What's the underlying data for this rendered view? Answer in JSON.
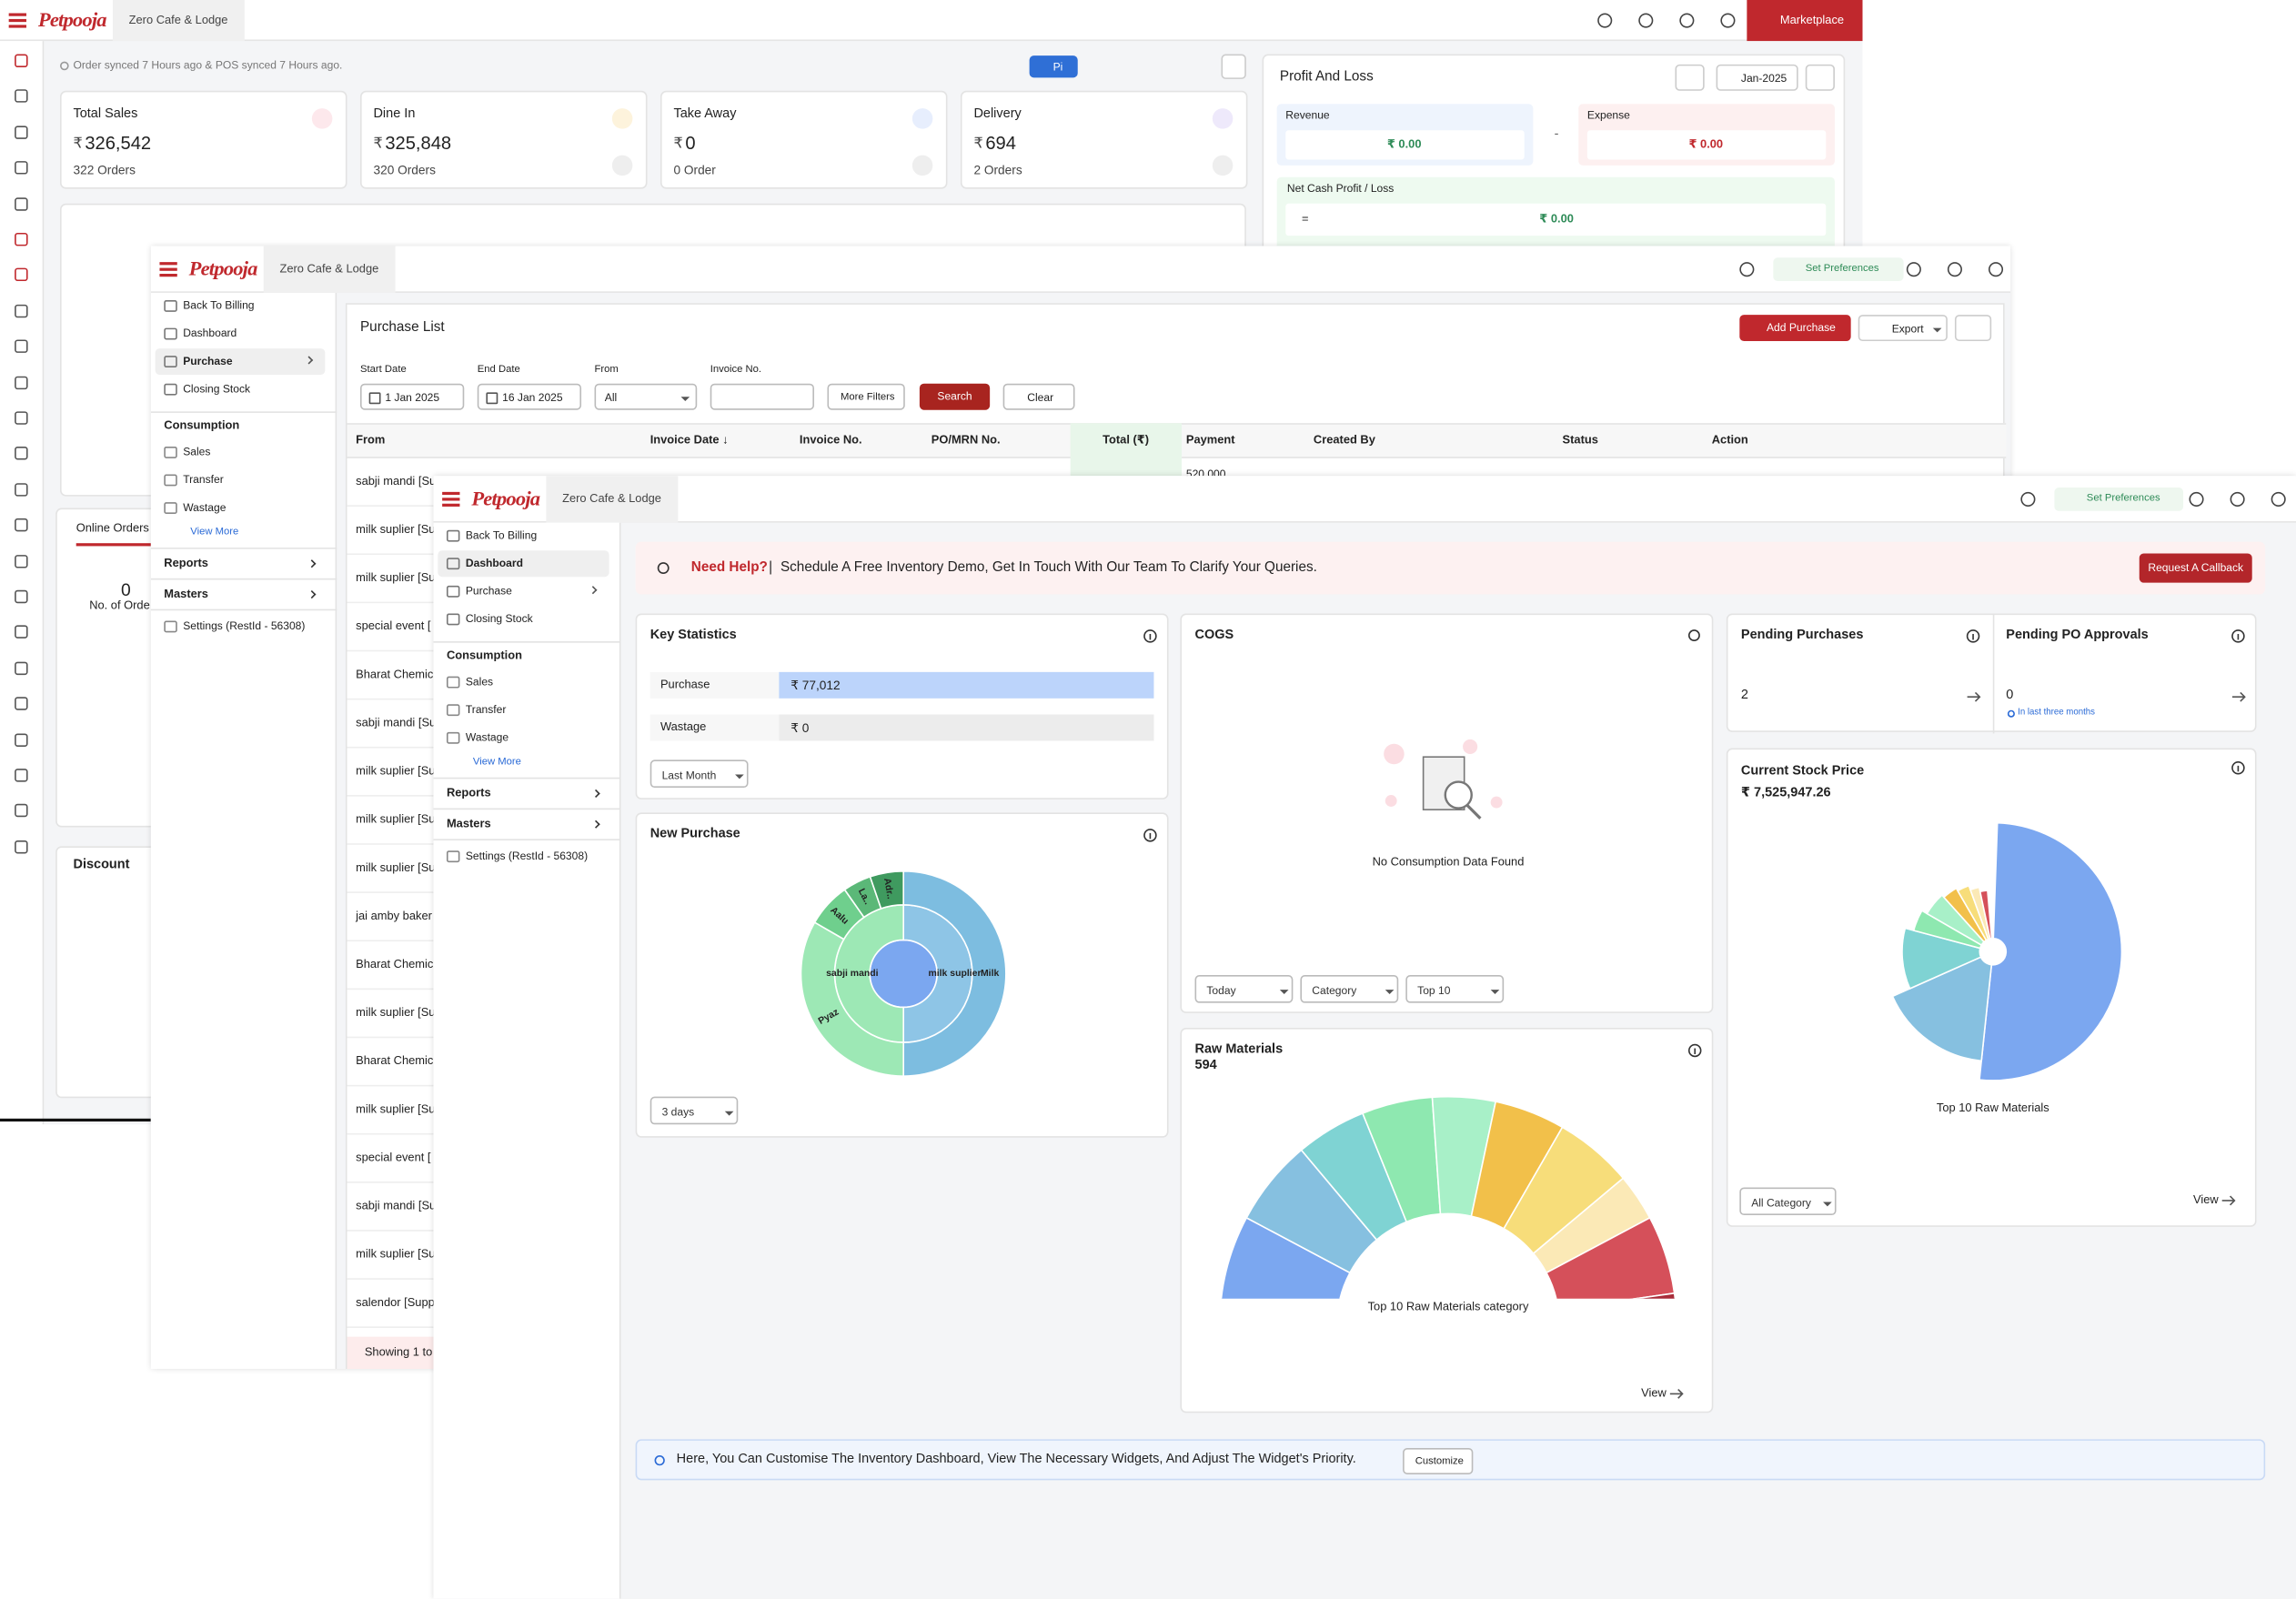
{
  "background_window": {
    "brand": "Petpooja",
    "outlet": "Zero Cafe & Lodge",
    "marketplace": "Marketplace",
    "sync_status": "Order synced 7 Hours ago & POS synced 7 Hours ago.",
    "pi_button": "Pi",
    "cards": [
      {
        "title": "Total Sales",
        "currency": "₹",
        "amount": "326,542",
        "orders": "322 Orders"
      },
      {
        "title": "Dine In",
        "currency": "₹",
        "amount": "325,848",
        "orders": "320 Orders"
      },
      {
        "title": "Take Away",
        "currency": "₹",
        "amount": "0",
        "orders": "0 Order"
      },
      {
        "title": "Delivery",
        "currency": "₹",
        "amount": "694",
        "orders": "2 Orders"
      }
    ],
    "profit_and_loss": {
      "title": "Profit And Loss",
      "period": "Jan-2025",
      "revenue_label": "Revenue",
      "revenue": "₹ 0.00",
      "operator": "-",
      "expense_label": "Expense",
      "expense": "₹ 0.00",
      "net_label": "Net Cash Profit / Loss",
      "equals": "=",
      "net": "₹ 0.00"
    },
    "online_orders": {
      "tab": "Online Orders",
      "count": "0",
      "label": "No. of Orde"
    },
    "discount": "Discount"
  },
  "purchase_window": {
    "brand": "Petpooja",
    "outlet": "Zero Cafe & Lodge",
    "set_preferences": "Set Preferences",
    "sidebar": {
      "menu": [
        "Back To Billing",
        "Dashboard",
        "Purchase",
        "Closing Stock"
      ],
      "section": "Consumption",
      "section_menu": [
        "Sales",
        "Transfer",
        "Wastage"
      ],
      "view_more": "View More",
      "groups": [
        "Reports",
        "Masters"
      ],
      "settings": "Settings (RestId - 56308)"
    },
    "title": "Purchase List",
    "add_purchase": "Add Purchase",
    "export": "Export",
    "filters": {
      "start_date_label": "Start Date",
      "start_date": "1 Jan 2025",
      "end_date_label": "End Date",
      "end_date": "16 Jan 2025",
      "from_label": "From",
      "from": "All",
      "invoice_label": "Invoice No.",
      "more_filters": "More Filters",
      "search": "Search",
      "clear": "Clear"
    },
    "columns": [
      "From",
      "Invoice Date ↓",
      "Invoice No.",
      "PO/MRN No.",
      "Total (₹)",
      "Payment",
      "Created By",
      "Status",
      "Action"
    ],
    "first_row_payment": "520.000",
    "rows": [
      "sabji mandi [Su",
      "milk suplier [Su",
      "milk suplier [Su",
      "special event [",
      "Bharat Chemic",
      "sabji mandi [Su",
      "milk suplier [Su",
      "milk suplier [Su",
      "milk suplier [Su",
      "jai amby baker",
      "Bharat Chemic",
      "milk suplier [Su",
      "Bharat Chemic",
      "milk suplier [Su",
      "special event [",
      "sabji mandi [Su",
      "milk suplier [Su",
      "salendor [Supp"
    ],
    "footer": "Showing 1 to"
  },
  "dashboard_window": {
    "brand": "Petpooja",
    "outlet": "Zero Cafe & Lodge",
    "set_preferences": "Set Preferences",
    "sidebar": {
      "menu": [
        "Back To Billing",
        "Dashboard",
        "Purchase",
        "Closing Stock"
      ],
      "section": "Consumption",
      "section_menu": [
        "Sales",
        "Transfer",
        "Wastage"
      ],
      "view_more": "View More",
      "groups": [
        "Reports",
        "Masters"
      ],
      "settings": "Settings (RestId - 56308)"
    },
    "help_banner": {
      "title": "Need Help?",
      "separator": "|",
      "text": "Schedule A Free Inventory Demo, Get In Touch With Our Team To Clarify Your Queries.",
      "button": "Request A Callback"
    },
    "key_statistics": {
      "title": "Key Statistics",
      "rows": [
        {
          "label": "Purchase",
          "value": "₹ 77,012"
        },
        {
          "label": "Wastage",
          "value": "₹ 0"
        }
      ],
      "period": "Last Month"
    },
    "cogs": {
      "title": "COGS",
      "empty": "No Consumption Data Found",
      "filters": [
        "Today",
        "Category",
        "Top 10"
      ]
    },
    "pending": {
      "purchases_title": "Pending Purchases",
      "purchases": "2",
      "approvals_title": "Pending PO Approvals",
      "approvals": "0",
      "approvals_note": "In last three months"
    },
    "current_stock": {
      "title": "Current Stock Price",
      "value": "₹ 7,525,947.26",
      "caption": "Top 10 Raw Materials",
      "filter": "All Category",
      "view": "View"
    },
    "new_purchase": {
      "title": "New Purchase",
      "labels": [
        "Milk",
        "milk suplier",
        "sabji mandi",
        "Pyaz",
        "Aalu",
        "La..",
        "Adr.."
      ],
      "period": "3 days"
    },
    "raw_materials": {
      "title": "Raw Materials",
      "count": "594",
      "caption": "Top 10 Raw Materials category",
      "view": "View"
    },
    "customise": {
      "text": "Here, You Can Customise The Inventory Dashboard, View The Necessary Widgets, And Adjust The Widget's Priority.",
      "button": "Customize"
    }
  }
}
